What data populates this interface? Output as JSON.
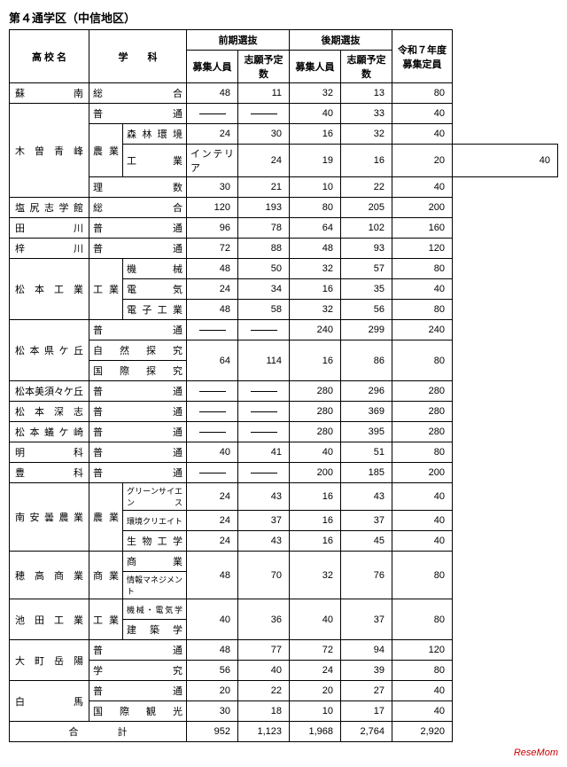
{
  "title": "第４通学区（中信地区）",
  "headers": {
    "school": "高 校 名",
    "dept": "学　　科",
    "zenki": "前期選抜",
    "kouki": "後期選抜",
    "r7": "令和７年度募集定員",
    "boshu": "募集人員",
    "shigan": "志願予定数"
  },
  "rows": [
    {
      "school": "蘇　　　　南",
      "dept": "総　　合",
      "sub": "",
      "z1": "48",
      "z2": "11",
      "k1": "32",
      "k2": "13",
      "r": "80"
    },
    {
      "school_span": 4,
      "school": "木 曽 青 峰",
      "dept": "普　　通",
      "sub": "",
      "z1": "dash",
      "z2": "dash",
      "k1": "40",
      "k2": "33",
      "r": "40"
    },
    {
      "dept_span": 2,
      "dept": "農業",
      "sub": "森林環境",
      "z1": "24",
      "z2": "30",
      "k1": "16",
      "k2": "32",
      "r": "40"
    },
    {
      "dept": "工業",
      "sub": "インテリア",
      "z1": "24",
      "z2": "19",
      "k1": "16",
      "k2": "20",
      "r": "40"
    },
    {
      "dept": "理　　数",
      "sub": "",
      "z1": "30",
      "z2": "21",
      "k1": "10",
      "k2": "22",
      "r": "40"
    },
    {
      "school": "塩 尻 志 学 館",
      "dept": "総　　合",
      "sub": "",
      "z1": "120",
      "z2": "193",
      "k1": "80",
      "k2": "205",
      "r": "200"
    },
    {
      "school": "田　　　　川",
      "dept": "普　　通",
      "sub": "",
      "z1": "96",
      "z2": "78",
      "k1": "64",
      "k2": "102",
      "r": "160"
    },
    {
      "school": "梓　　　　川",
      "dept": "普　　通",
      "sub": "",
      "z1": "72",
      "z2": "88",
      "k1": "48",
      "k2": "93",
      "r": "120"
    },
    {
      "school_span": 3,
      "school": "松 本 工 業",
      "dept_span": 3,
      "dept": "工業",
      "sub": "機　　械",
      "z1": "48",
      "z2": "50",
      "k1": "32",
      "k2": "57",
      "r": "80"
    },
    {
      "sub": "電　　気",
      "z1": "24",
      "z2": "34",
      "k1": "16",
      "k2": "35",
      "r": "40"
    },
    {
      "sub": "電子工業",
      "z1": "48",
      "z2": "58",
      "k1": "32",
      "k2": "56",
      "r": "80"
    },
    {
      "school_span": 3,
      "school": "松 本 県 ケ 丘",
      "dept": "普　　通",
      "sub": "",
      "z1": "dash",
      "z2": "dash",
      "k1": "240",
      "k2": "299",
      "r": "240"
    },
    {
      "dept": "自然探究",
      "sub": "",
      "brace": true,
      "z1": "64",
      "z2": "114",
      "k1": "16",
      "k2": "86",
      "r": "80"
    },
    {
      "dept": "国際探究",
      "sub": "",
      "brace_end": true
    },
    {
      "school": "松本美須々ケ丘",
      "dept": "普　　通",
      "sub": "",
      "z1": "dash",
      "z2": "dash",
      "k1": "280",
      "k2": "296",
      "r": "280"
    },
    {
      "school": "松 本 深 志",
      "dept": "普　　通",
      "sub": "",
      "z1": "dash",
      "z2": "dash",
      "k1": "280",
      "k2": "369",
      "r": "280"
    },
    {
      "school": "松 本 蟻 ケ 崎",
      "dept": "普　　通",
      "sub": "",
      "z1": "dash",
      "z2": "dash",
      "k1": "280",
      "k2": "395",
      "r": "280"
    },
    {
      "school": "明　　　　科",
      "dept": "普　　通",
      "sub": "",
      "z1": "40",
      "z2": "41",
      "k1": "40",
      "k2": "51",
      "r": "80"
    },
    {
      "school": "豊　　　　科",
      "dept": "普　　通",
      "sub": "",
      "z1": "dash",
      "z2": "dash",
      "k1": "200",
      "k2": "185",
      "r": "200"
    },
    {
      "school_span": 3,
      "school": "南 安 曇 農 業",
      "dept_span": 3,
      "dept": "農業",
      "sub": "グリーンサイエンス",
      "small": true,
      "z1": "24",
      "z2": "43",
      "k1": "16",
      "k2": "43",
      "r": "40"
    },
    {
      "sub": "環境クリエイト",
      "small": true,
      "z1": "24",
      "z2": "37",
      "k1": "16",
      "k2": "37",
      "r": "40"
    },
    {
      "sub": "生物工学",
      "z1": "24",
      "z2": "43",
      "k1": "16",
      "k2": "45",
      "r": "40"
    },
    {
      "school_span": 2,
      "school": "穂 高 商 業",
      "dept_span": 2,
      "dept": "商業",
      "sub": "商　　業",
      "brace": true,
      "z1": "48",
      "z2": "70",
      "k1": "32",
      "k2": "76",
      "r": "80"
    },
    {
      "sub": "情報マネジメント",
      "small": true,
      "brace_end": true
    },
    {
      "school_span": 2,
      "school": "池 田 工 業",
      "dept_span": 2,
      "dept": "工業",
      "sub": "機械・電気学",
      "small": true,
      "brace": true,
      "z1": "40",
      "z2": "36",
      "k1": "40",
      "k2": "37",
      "r": "80"
    },
    {
      "sub": "建 築 学",
      "brace_end": true
    },
    {
      "school_span": 2,
      "school": "大 町 岳 陽",
      "dept": "普　　通",
      "sub": "",
      "z1": "48",
      "z2": "77",
      "k1": "72",
      "k2": "94",
      "r": "120"
    },
    {
      "dept": "学　　究",
      "sub": "",
      "z1": "56",
      "z2": "40",
      "k1": "24",
      "k2": "39",
      "r": "80"
    },
    {
      "school_span": 2,
      "school": "白　　　　馬",
      "dept": "普　　通",
      "sub": "",
      "z1": "20",
      "z2": "22",
      "k1": "20",
      "k2": "27",
      "r": "40"
    },
    {
      "dept": "国際観光",
      "sub": "",
      "z1": "30",
      "z2": "18",
      "k1": "10",
      "k2": "17",
      "r": "40"
    }
  ],
  "total": {
    "label": "合　　　　計",
    "z1": "952",
    "z2": "1,123",
    "k1": "1,968",
    "k2": "2,764",
    "r": "2,920"
  },
  "footer": "ReseMom"
}
